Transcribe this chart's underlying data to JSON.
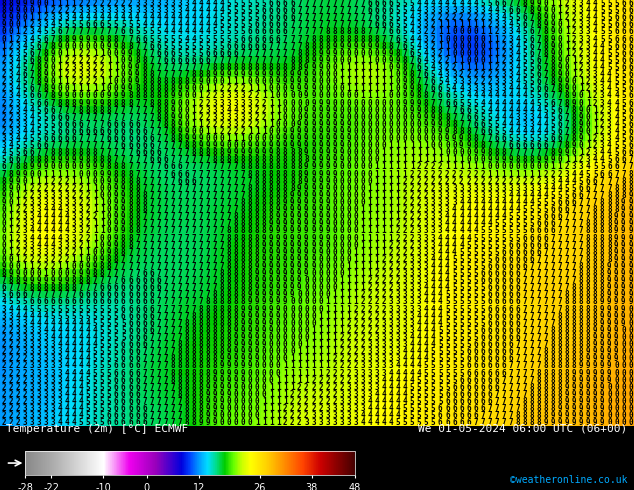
{
  "title_left": "Temperature (2m) [°C] ECMWF",
  "title_right": "We 01-05-2024 06:00 UTC (06+00)",
  "credit": "©weatheronline.co.uk",
  "colorbar_values": [
    -28,
    -22,
    -10,
    0,
    12,
    26,
    38,
    48
  ],
  "colorbar_stops": [
    [
      0.0,
      "#888888"
    ],
    [
      0.079,
      "#aaaaaa"
    ],
    [
      0.237,
      "#ffffff"
    ],
    [
      0.316,
      "#ee00ee"
    ],
    [
      0.395,
      "#9900bb"
    ],
    [
      0.474,
      "#0000dd"
    ],
    [
      0.5,
      "#0044ff"
    ],
    [
      0.526,
      "#0099ff"
    ],
    [
      0.553,
      "#00ddff"
    ],
    [
      0.579,
      "#00dd88"
    ],
    [
      0.605,
      "#00cc00"
    ],
    [
      0.632,
      "#66ff00"
    ],
    [
      0.658,
      "#ccff00"
    ],
    [
      0.684,
      "#ffff00"
    ],
    [
      0.737,
      "#ffcc00"
    ],
    [
      0.79,
      "#ff8800"
    ],
    [
      0.842,
      "#ff4400"
    ],
    [
      0.895,
      "#cc0000"
    ],
    [
      0.947,
      "#880000"
    ],
    [
      1.0,
      "#440000"
    ]
  ],
  "vmin": -28,
  "vmax": 48,
  "figsize": [
    6.34,
    4.9
  ],
  "dpi": 100,
  "map_rows": 60,
  "map_cols": 90,
  "digit_fontsize": 5.5,
  "digit_color": "#000000",
  "bg_color": "#000000",
  "credit_color": "#00aaff",
  "label_color": "#ffffff"
}
